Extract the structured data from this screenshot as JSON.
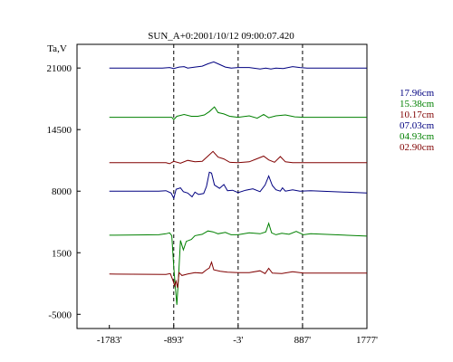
{
  "chart_data": {
    "type": "line",
    "title": "SUN_A+0:2001/10/12 09:00:07.420",
    "ylabel": "Ta,V",
    "xlabel": "",
    "xlim": [
      -2230,
      1777
    ],
    "ylim": [
      -6500,
      23500
    ],
    "x_ticks": [
      -1783,
      -893,
      -3,
      887,
      1777
    ],
    "x_tick_labels": [
      "-1783'",
      "-893'",
      "-3'",
      "887'",
      "1777'"
    ],
    "y_ticks": [
      21000,
      14500,
      8000,
      1500,
      -5000
    ],
    "y_tick_labels": [
      "21000",
      "14500",
      "8000",
      "1500",
      "-5000"
    ],
    "vlines_dashed": [
      -893,
      -3,
      887
    ],
    "grid": false,
    "legend_position": "right",
    "series": [
      {
        "name": "17.96cm",
        "color": "#000080",
        "values": [
          [
            -1783,
            21000
          ],
          [
            -1050,
            21000
          ],
          [
            -950,
            21050
          ],
          [
            -893,
            20950
          ],
          [
            -820,
            21100
          ],
          [
            -750,
            21150
          ],
          [
            -700,
            21000
          ],
          [
            -600,
            21100
          ],
          [
            -500,
            21200
          ],
          [
            -420,
            21450
          ],
          [
            -340,
            21650
          ],
          [
            -280,
            21450
          ],
          [
            -180,
            21100
          ],
          [
            -100,
            21000
          ],
          [
            -3,
            21050
          ],
          [
            150,
            21050
          ],
          [
            300,
            20900
          ],
          [
            380,
            21000
          ],
          [
            450,
            20900
          ],
          [
            520,
            21000
          ],
          [
            620,
            20950
          ],
          [
            750,
            21150
          ],
          [
            850,
            21050
          ],
          [
            950,
            21000
          ],
          [
            1777,
            21000
          ]
        ]
      },
      {
        "name": "15.38cm",
        "color": "#008000",
        "values": [
          [
            -1783,
            15800
          ],
          [
            -1000,
            15800
          ],
          [
            -920,
            15800
          ],
          [
            -893,
            15550
          ],
          [
            -850,
            15900
          ],
          [
            -750,
            16100
          ],
          [
            -650,
            15900
          ],
          [
            -560,
            15900
          ],
          [
            -470,
            16050
          ],
          [
            -400,
            16400
          ],
          [
            -330,
            16900
          ],
          [
            -280,
            16300
          ],
          [
            -200,
            16150
          ],
          [
            -120,
            15900
          ],
          [
            -3,
            15800
          ],
          [
            150,
            15950
          ],
          [
            260,
            15700
          ],
          [
            350,
            16100
          ],
          [
            420,
            15750
          ],
          [
            520,
            15950
          ],
          [
            650,
            16050
          ],
          [
            780,
            15850
          ],
          [
            900,
            15800
          ],
          [
            1777,
            15800
          ]
        ]
      },
      {
        "name": "10.17cm",
        "color": "#800000",
        "values": [
          [
            -1783,
            11000
          ],
          [
            -1000,
            11000
          ],
          [
            -950,
            10900
          ],
          [
            -893,
            11150
          ],
          [
            -800,
            10950
          ],
          [
            -700,
            11250
          ],
          [
            -600,
            11100
          ],
          [
            -500,
            11150
          ],
          [
            -420,
            11700
          ],
          [
            -350,
            12200
          ],
          [
            -280,
            11600
          ],
          [
            -200,
            11400
          ],
          [
            -120,
            11050
          ],
          [
            -3,
            11000
          ],
          [
            150,
            11100
          ],
          [
            250,
            11400
          ],
          [
            350,
            11700
          ],
          [
            420,
            11300
          ],
          [
            500,
            11050
          ],
          [
            580,
            11650
          ],
          [
            650,
            11100
          ],
          [
            750,
            11000
          ],
          [
            900,
            11000
          ],
          [
            1777,
            11000
          ]
        ]
      },
      {
        "name": "07.03cm",
        "color": "#000080",
        "values": [
          [
            -1783,
            8000
          ],
          [
            -1100,
            8000
          ],
          [
            -1000,
            8050
          ],
          [
            -930,
            7800
          ],
          [
            -893,
            7250
          ],
          [
            -860,
            8200
          ],
          [
            -800,
            8350
          ],
          [
            -760,
            7950
          ],
          [
            -700,
            7800
          ],
          [
            -640,
            7400
          ],
          [
            -600,
            7900
          ],
          [
            -550,
            7650
          ],
          [
            -480,
            7750
          ],
          [
            -440,
            8500
          ],
          [
            -400,
            10000
          ],
          [
            -370,
            9900
          ],
          [
            -330,
            8650
          ],
          [
            -260,
            8300
          ],
          [
            -200,
            8700
          ],
          [
            -150,
            8050
          ],
          [
            -80,
            8100
          ],
          [
            -3,
            7850
          ],
          [
            100,
            8100
          ],
          [
            200,
            8250
          ],
          [
            300,
            7950
          ],
          [
            370,
            8650
          ],
          [
            420,
            9600
          ],
          [
            470,
            8600
          ],
          [
            520,
            8150
          ],
          [
            580,
            8000
          ],
          [
            610,
            8350
          ],
          [
            650,
            8000
          ],
          [
            750,
            8150
          ],
          [
            850,
            8000
          ],
          [
            1000,
            8050
          ],
          [
            1777,
            7800
          ]
        ]
      },
      {
        "name": "04.93cm",
        "color": "#008000",
        "values": [
          [
            -1783,
            3350
          ],
          [
            -1100,
            3400
          ],
          [
            -1000,
            3500
          ],
          [
            -950,
            3600
          ],
          [
            -920,
            3300
          ],
          [
            -893,
            0
          ],
          [
            -870,
            -2200
          ],
          [
            -850,
            -4000
          ],
          [
            -830,
            -1500
          ],
          [
            -800,
            2800
          ],
          [
            -760,
            1800
          ],
          [
            -720,
            2700
          ],
          [
            -650,
            2900
          ],
          [
            -600,
            3300
          ],
          [
            -500,
            3450
          ],
          [
            -420,
            3800
          ],
          [
            -350,
            3700
          ],
          [
            -280,
            3500
          ],
          [
            -180,
            3650
          ],
          [
            -100,
            3400
          ],
          [
            -3,
            3400
          ],
          [
            150,
            3600
          ],
          [
            300,
            3500
          ],
          [
            380,
            3700
          ],
          [
            420,
            4600
          ],
          [
            460,
            3600
          ],
          [
            520,
            3400
          ],
          [
            600,
            3550
          ],
          [
            700,
            3450
          ],
          [
            800,
            3750
          ],
          [
            900,
            3400
          ],
          [
            1000,
            3500
          ],
          [
            1777,
            3250
          ]
        ]
      },
      {
        "name": "02.90cm",
        "color": "#800000",
        "values": [
          [
            -1783,
            -750
          ],
          [
            -1000,
            -800
          ],
          [
            -940,
            -700
          ],
          [
            -900,
            -1500
          ],
          [
            -880,
            -2000
          ],
          [
            -860,
            -1500
          ],
          [
            -840,
            -2200
          ],
          [
            -820,
            -600
          ],
          [
            -780,
            -900
          ],
          [
            -700,
            -750
          ],
          [
            -600,
            -600
          ],
          [
            -500,
            -650
          ],
          [
            -440,
            -300
          ],
          [
            -400,
            -100
          ],
          [
            -370,
            500
          ],
          [
            -340,
            -300
          ],
          [
            -250,
            -450
          ],
          [
            -150,
            -550
          ],
          [
            -3,
            -600
          ],
          [
            150,
            -600
          ],
          [
            300,
            -400
          ],
          [
            370,
            -700
          ],
          [
            420,
            -150
          ],
          [
            470,
            -650
          ],
          [
            600,
            -700
          ],
          [
            750,
            -500
          ],
          [
            900,
            -650
          ],
          [
            1777,
            -650
          ]
        ]
      }
    ]
  }
}
